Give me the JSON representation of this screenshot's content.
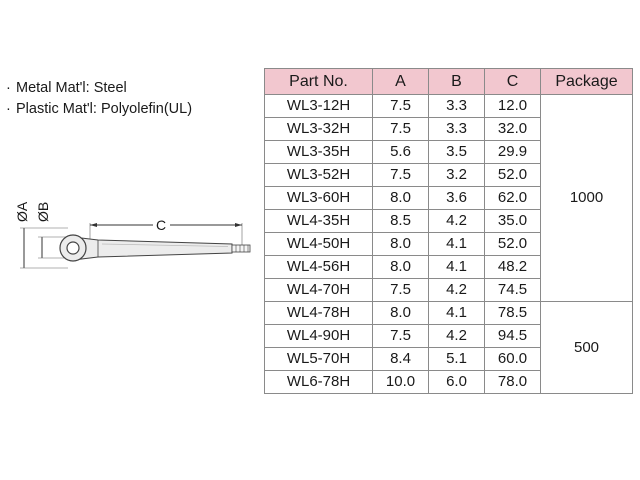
{
  "materials": [
    {
      "bullet": "·",
      "text": "Metal Mat'l: Steel"
    },
    {
      "bullet": "·",
      "text": "Plastic Mat'l: Polyolefin(UL)"
    }
  ],
  "drawing": {
    "dim_a": "ØA",
    "dim_b": "ØB",
    "dim_c": "C"
  },
  "table": {
    "headers": [
      "Part No.",
      "A",
      "B",
      "C",
      "Package"
    ],
    "rows": [
      {
        "part": "WL3-12H",
        "a": "7.5",
        "b": "3.3",
        "c": "12.0"
      },
      {
        "part": "WL3-32H",
        "a": "7.5",
        "b": "3.3",
        "c": "32.0"
      },
      {
        "part": "WL3-35H",
        "a": "5.6",
        "b": "3.5",
        "c": "29.9"
      },
      {
        "part": "WL3-52H",
        "a": "7.5",
        "b": "3.2",
        "c": "52.0"
      },
      {
        "part": "WL3-60H",
        "a": "8.0",
        "b": "3.6",
        "c": "62.0"
      },
      {
        "part": "WL4-35H",
        "a": "8.5",
        "b": "4.2",
        "c": "35.0"
      },
      {
        "part": "WL4-50H",
        "a": "8.0",
        "b": "4.1",
        "c": "52.0"
      },
      {
        "part": "WL4-56H",
        "a": "8.0",
        "b": "4.1",
        "c": "48.2"
      },
      {
        "part": "WL4-70H",
        "a": "7.5",
        "b": "4.2",
        "c": "74.5"
      },
      {
        "part": "WL4-78H",
        "a": "8.0",
        "b": "4.1",
        "c": "78.5"
      },
      {
        "part": "WL4-90H",
        "a": "7.5",
        "b": "4.2",
        "c": "94.5"
      },
      {
        "part": "WL5-70H",
        "a": "8.4",
        "b": "5.1",
        "c": "60.0"
      },
      {
        "part": "WL6-78H",
        "a": "10.0",
        "b": "6.0",
        "c": "78.0"
      }
    ],
    "packages": [
      {
        "value": "1000",
        "rows": 9
      },
      {
        "value": "500",
        "rows": 4
      }
    ]
  },
  "colors": {
    "header_bg": "#f2c7cf",
    "border": "#8a8a8a"
  }
}
